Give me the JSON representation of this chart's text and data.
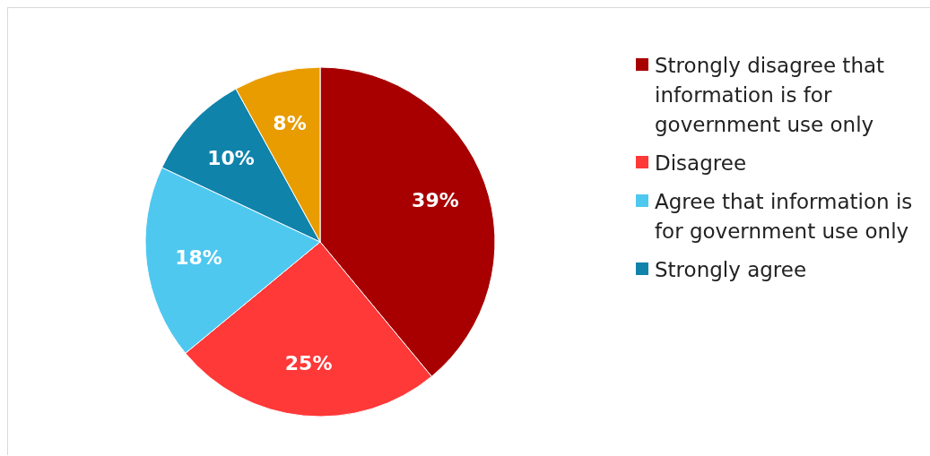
{
  "chart_data": {
    "type": "pie",
    "categories": [
      "Strongly disagree that information is for government use only",
      "Disagree",
      "Agree that information is for government use only",
      "Strongly agree",
      null
    ],
    "values": [
      39,
      25,
      18,
      10,
      8
    ],
    "colors": [
      "#a80000",
      "#ff3838",
      "#4fc8f0",
      "#1083ab",
      "#e89c00"
    ],
    "value_labels": [
      "39%",
      "25%",
      "18%",
      "10%",
      "8%"
    ],
    "legend": "right"
  }
}
